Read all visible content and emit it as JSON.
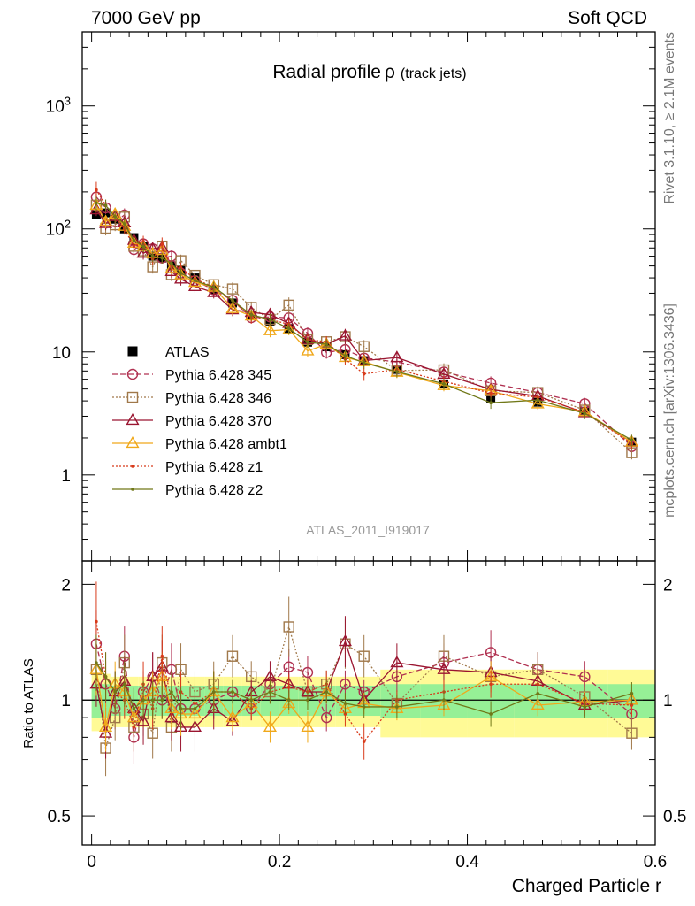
{
  "header": {
    "left": "7000 GeV pp",
    "right": "Soft QCD"
  },
  "side_labels": {
    "top": "Rivet 3.1.10, ≥ 2.1M events",
    "bottom": "mcplots.cern.ch [arXiv:1306.3436]"
  },
  "chart_data": {
    "type": "line",
    "title": "Radial profile",
    "title_symbol": "ρ",
    "title_suffix": "(track jets)",
    "analysis": "ATLAS_2011_I919017",
    "xlabel": "Charged Particle r",
    "ratio_ylabel": "Ratio to ATLAS",
    "xlim": [
      -0.01,
      0.6
    ],
    "ylim": [
      0.2,
      4000
    ],
    "yscale": "log",
    "ratio_ylim": [
      0.42,
      2.3
    ],
    "ratio_yscale": "log",
    "x_ticks": [
      "0",
      "0.2",
      "0.4",
      "0.6"
    ],
    "y_tick_labels": {
      "e3": "10",
      "e3_exp": "3",
      "e2": "10",
      "e2_exp": "2",
      "ten": "10",
      "one": "1"
    },
    "ratio_ticks": [
      "2",
      "1",
      "0.5"
    ],
    "legend_position": "center-left",
    "x": [
      0.005,
      0.015,
      0.025,
      0.035,
      0.045,
      0.055,
      0.065,
      0.075,
      0.085,
      0.095,
      0.11,
      0.13,
      0.15,
      0.17,
      0.19,
      0.21,
      0.23,
      0.25,
      0.27,
      0.29,
      0.325,
      0.375,
      0.425,
      0.475,
      0.525,
      0.575
    ],
    "atlas": [
      130,
      135,
      120,
      100,
      85,
      72,
      60,
      58,
      50,
      46,
      40,
      32,
      25,
      20,
      17.5,
      15.5,
      12,
      11,
      9.5,
      8.5,
      7.2,
      5.5,
      4.2,
      3.9,
      3.3,
      1.85
    ],
    "ratio_band_inner": [
      0.1,
      0.1,
      0.09,
      0.09,
      0.09,
      0.09,
      0.09,
      0.09,
      0.09,
      0.09,
      0.09,
      0.09,
      0.09,
      0.09,
      0.09,
      0.09,
      0.09,
      0.09,
      0.09,
      0.09,
      0.1,
      0.1,
      0.1,
      0.1,
      0.1,
      0.1
    ],
    "ratio_band_outer": [
      0.17,
      0.17,
      0.15,
      0.15,
      0.15,
      0.15,
      0.15,
      0.15,
      0.15,
      0.15,
      0.15,
      0.15,
      0.15,
      0.15,
      0.15,
      0.15,
      0.15,
      0.15,
      0.15,
      0.15,
      0.2,
      0.2,
      0.2,
      0.2,
      0.2,
      0.2
    ],
    "series": [
      {
        "name": "ATLAS",
        "color": "#000000",
        "marker": "filled-square",
        "line": "none"
      },
      {
        "name": "Pythia 6.428 345",
        "color": "#b03050",
        "marker": "open-circle",
        "line": "dashed",
        "ratio": [
          1.4,
          1.1,
          0.95,
          1.3,
          0.8,
          1.05,
          1.15,
          1.0,
          1.2,
          0.95,
          0.95,
          1.0,
          1.05,
          0.95,
          1.1,
          1.22,
          1.18,
          0.9,
          1.1,
          1.05,
          1.15,
          1.25,
          1.33,
          1.2,
          1.15,
          0.92
        ]
      },
      {
        "name": "Pythia 6.428 346",
        "color": "#a0784a",
        "marker": "open-square",
        "line": "dotted",
        "ratio": [
          1.2,
          0.75,
          0.9,
          1.25,
          0.85,
          0.92,
          0.82,
          1.25,
          0.85,
          1.2,
          1.05,
          1.1,
          1.3,
          1.15,
          1.05,
          1.55,
          1.05,
          1.1,
          1.4,
          1.3,
          0.98,
          1.3,
          1.15,
          1.2,
          1.02,
          0.82
        ]
      },
      {
        "name": "Pythia 6.428 370",
        "color": "#9a1530",
        "marker": "open-triangle",
        "line": "solid",
        "ratio": [
          1.1,
          0.82,
          1.05,
          1.12,
          0.95,
          0.88,
          1.15,
          1.22,
          0.9,
          0.85,
          0.85,
          0.95,
          0.88,
          1.05,
          1.15,
          1.1,
          1.05,
          1.05,
          1.42,
          1.0,
          1.25,
          1.2,
          1.18,
          1.12,
          0.97,
          1.0
        ]
      },
      {
        "name": "Pythia 6.428 ambt1",
        "color": "#f0a81a",
        "marker": "open-triangle",
        "line": "solid",
        "ratio": [
          1.2,
          0.85,
          1.1,
          1.05,
          0.9,
          1.0,
          1.05,
          1.15,
          0.95,
          0.92,
          0.92,
          1.05,
          0.9,
          0.98,
          0.85,
          0.98,
          0.85,
          1.05,
          0.95,
          0.98,
          0.95,
          0.97,
          1.15,
          0.97,
          0.99,
          1.0
        ]
      },
      {
        "name": "Pythia 6.428 z1",
        "color": "#d83a1a",
        "marker": "dot",
        "line": "dotted",
        "ratio": [
          1.6,
          1.15,
          1.05,
          1.0,
          0.85,
          1.1,
          0.95,
          1.3,
          1.0,
          1.05,
          0.98,
          1.05,
          1.05,
          0.95,
          1.05,
          1.08,
          1.05,
          1.1,
          0.92,
          0.78,
          1.0,
          1.05,
          1.1,
          1.1,
          0.98,
          0.97
        ]
      },
      {
        "name": "Pythia 6.428 z2",
        "color": "#707818",
        "marker": "dot",
        "line": "solid",
        "ratio": [
          1.25,
          1.15,
          1.05,
          1.1,
          0.95,
          1.0,
          1.0,
          1.0,
          1.05,
          0.95,
          0.95,
          1.05,
          1.05,
          1.0,
          1.05,
          1.0,
          1.0,
          1.05,
          0.98,
          0.96,
          0.96,
          1.0,
          0.92,
          1.04,
          0.96,
          1.04
        ]
      }
    ]
  }
}
